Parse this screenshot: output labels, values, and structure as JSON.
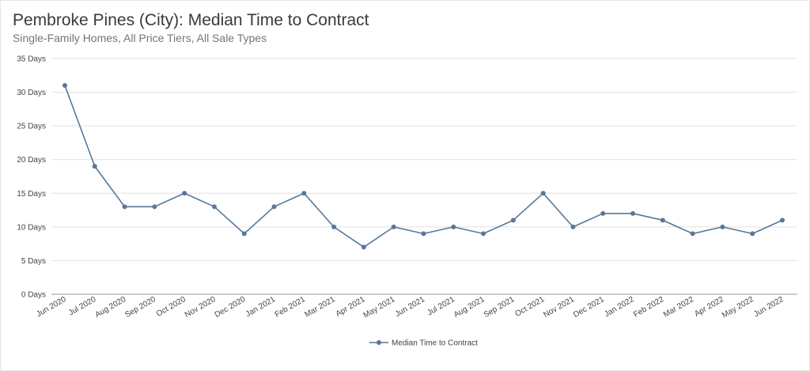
{
  "title": "Pembroke Pines (City): Median Time to Contract",
  "subtitle": "Single-Family Homes, All Price Tiers, All Sale Types",
  "chart_data": {
    "type": "line",
    "title": "Pembroke Pines (City): Median Time to Contract",
    "subtitle": "Single-Family Homes, All Price Tiers, All Sale Types",
    "categories": [
      "Jun 2020",
      "Jul 2020",
      "Aug 2020",
      "Sep 2020",
      "Oct 2020",
      "Nov 2020",
      "Dec 2020",
      "Jan 2021",
      "Feb 2021",
      "Mar 2021",
      "Apr 2021",
      "May 2021",
      "Jun 2021",
      "Jul 2021",
      "Aug 2021",
      "Sep 2021",
      "Oct 2021",
      "Nov 2021",
      "Dec 2021",
      "Jan 2022",
      "Feb 2022",
      "Mar 2022",
      "Apr 2022",
      "May 2022",
      "Jun 2022"
    ],
    "series": [
      {
        "name": "Median Time to Contract",
        "color": "#56789a",
        "values": [
          31,
          19,
          13,
          13,
          15,
          13,
          9,
          13,
          15,
          10,
          7,
          10,
          9,
          10,
          9,
          11,
          15,
          10,
          12,
          12,
          11,
          9,
          10,
          9,
          11
        ]
      }
    ],
    "y_ticks": [
      "0 Days",
      "5 Days",
      "10 Days",
      "15 Days",
      "20 Days",
      "25 Days",
      "30 Days",
      "35 Days"
    ],
    "ylim": [
      0,
      35
    ],
    "grid": true,
    "legend_position": "bottom-center"
  }
}
